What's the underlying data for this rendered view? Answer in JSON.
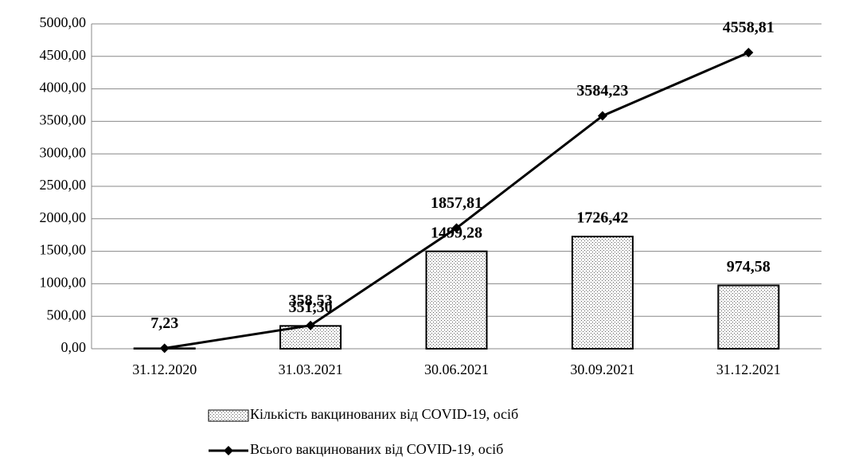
{
  "chart_data": {
    "type": "combo",
    "categories": [
      "31.12.2020",
      "31.03.2021",
      "30.06.2021",
      "30.09.2021",
      "31.12.2021"
    ],
    "series": [
      {
        "name": "Кількість вакцинованих від COVID-19, осіб",
        "type": "bar",
        "color": "#000000",
        "values": [
          7.23,
          351.3,
          1499.28,
          1726.42,
          974.58
        ],
        "value_labels": [
          null,
          "351,30",
          "1499,28",
          "1726,42",
          "974,58"
        ]
      },
      {
        "name": "Всього вакцинованих від COVID-19, осіб",
        "type": "line",
        "color": "#000000",
        "values": [
          7.23,
          358.53,
          1857.81,
          3584.23,
          4558.81
        ],
        "value_labels": [
          "7,23",
          "358,53",
          "1857,81",
          "3584,23",
          "4558,81"
        ]
      }
    ],
    "ylim": [
      0,
      5000
    ],
    "yticks": [
      {
        "value": 0,
        "label": "0,00"
      },
      {
        "value": 500,
        "label": "500,00"
      },
      {
        "value": 1000,
        "label": "1000,00"
      },
      {
        "value": 1500,
        "label": "1500,00"
      },
      {
        "value": 2000,
        "label": "2000,00"
      },
      {
        "value": 2500,
        "label": "2500,00"
      },
      {
        "value": 3000,
        "label": "3000,00"
      },
      {
        "value": 3500,
        "label": "3500,00"
      },
      {
        "value": 4000,
        "label": "4000,00"
      },
      {
        "value": 4500,
        "label": "4500,00"
      },
      {
        "value": 5000,
        "label": "5000,00"
      }
    ],
    "grid": true,
    "legend": "bottom"
  }
}
